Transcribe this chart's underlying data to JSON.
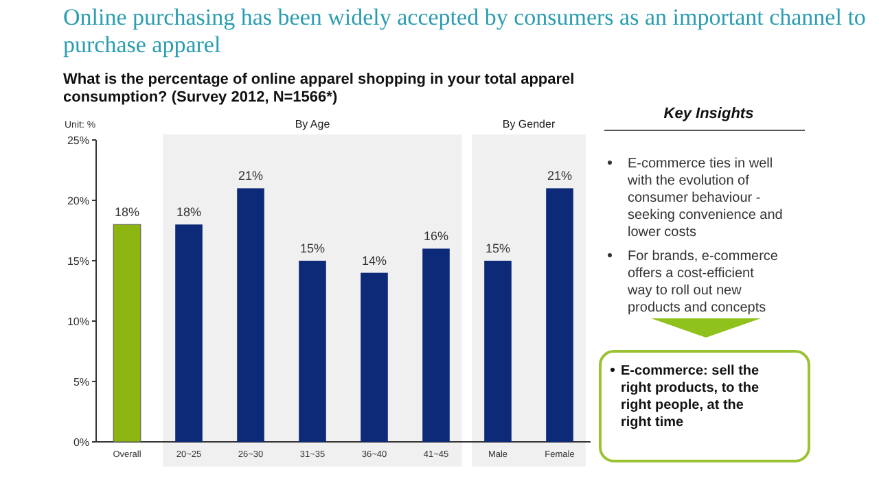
{
  "chart_data": {
    "type": "bar",
    "title": "Online purchasing has been widely accepted by consumers as an important channel to purchase apparel",
    "subtitle": "What is the percentage of online apparel shopping in your total apparel consumption? (Survey  2012, N=1566*)",
    "ylabel": "Unit: %",
    "categories": [
      "Overall",
      "20~25",
      "26~30",
      "31~35",
      "36~40",
      "41~45",
      "Male",
      "Female"
    ],
    "values": [
      18,
      18,
      21,
      15,
      14,
      16,
      15,
      21
    ],
    "colors": [
      "#8db512",
      "#0d2a78",
      "#0d2a78",
      "#0d2a78",
      "#0d2a78",
      "#0d2a78",
      "#0d2a78",
      "#0d2a78"
    ],
    "ylim": [
      0,
      25
    ],
    "yticks": [
      {
        "value": 0,
        "label": "0%"
      },
      {
        "value": 5,
        "label": "5%"
      },
      {
        "value": 10,
        "label": "10%"
      },
      {
        "value": 15,
        "label": "15%"
      },
      {
        "value": 20,
        "label": "20%"
      },
      {
        "value": 25,
        "label": "25%"
      }
    ],
    "value_labels": [
      "18%",
      "18%",
      "21%",
      "15%",
      "14%",
      "16%",
      "15%",
      "21%"
    ],
    "bands": [
      {
        "axis": "x",
        "from": "20~25",
        "to": "41~45",
        "label": "By Age",
        "color": "#f0f0f0"
      },
      {
        "axis": "x",
        "from": "Male",
        "to": "Female",
        "label": "By Gender",
        "color": "#f0f0f0"
      }
    ],
    "annotations": [
      "Key Insights",
      "E-commerce ties in well with the evolution of consumer behaviour - seeking convenience and lower costs",
      "For brands, e-commerce offers a cost-efficient way to roll out new products and concepts",
      "E-commerce: sell the right products, to the right people, at the right time"
    ]
  }
}
